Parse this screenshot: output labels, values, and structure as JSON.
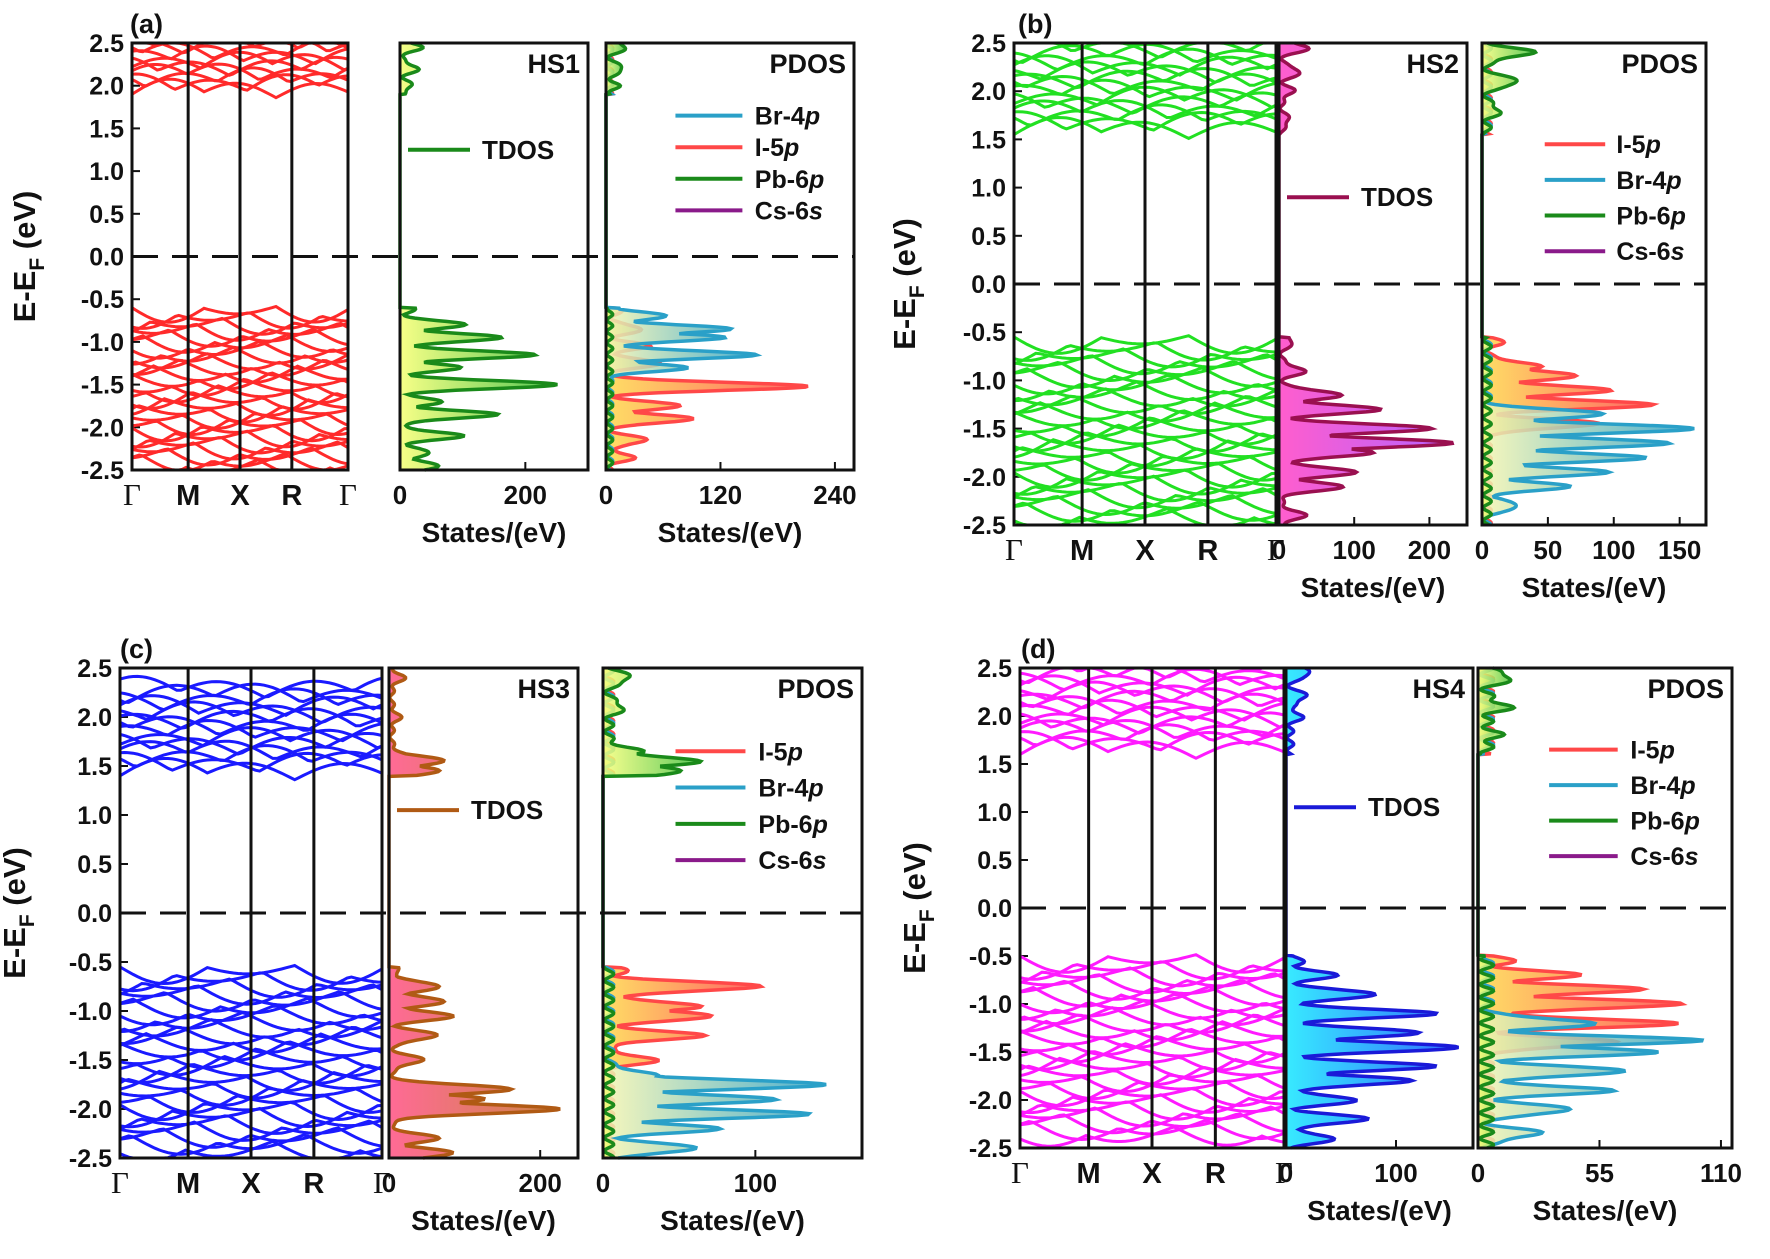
{
  "figure": {
    "y_axis_label_main": "E-E",
    "y_axis_label_sub": "F",
    "y_axis_label_unit": " (eV)",
    "y_range": [
      -2.5,
      2.5
    ],
    "y_ticks": [
      "2.5",
      "2.0",
      "1.5",
      "1.0",
      "0.5",
      "0.0",
      "-0.5",
      "-1.0",
      "-1.5",
      "-2.0",
      "-2.5"
    ],
    "k_labels": [
      "Γ",
      "M",
      "X",
      "R",
      "Γ"
    ],
    "dos_axis_label": "States/(eV)",
    "fermi_level": 0.0
  },
  "chart_data": [
    {
      "panel": "(a)",
      "type": "line",
      "band_color": "#ff2a2a",
      "gap": {
        "vbm": -0.6,
        "cbm": 1.9
      },
      "tdos": {
        "title": "HS1",
        "legend": "TDOS",
        "color": "#1a8a1a",
        "fill": [
          "#f6ff7a",
          "#3ec03e"
        ],
        "xticks": [
          "0",
          "200"
        ],
        "xtick_values": [
          0,
          200
        ],
        "xmax": 300,
        "peaks": [
          [
            -2.45,
            60
          ],
          [
            -2.3,
            45
          ],
          [
            -2.1,
            95
          ],
          [
            -1.85,
            150
          ],
          [
            -1.7,
            60
          ],
          [
            -1.5,
            250
          ],
          [
            -1.3,
            90
          ],
          [
            -1.15,
            210
          ],
          [
            -0.95,
            160
          ],
          [
            -0.8,
            100
          ],
          [
            -0.6,
            20
          ],
          [
            2.0,
            15
          ],
          [
            2.2,
            25
          ],
          [
            2.45,
            30
          ]
        ]
      },
      "pdos": {
        "title": "PDOS",
        "xticks": [
          "0",
          "120",
          "240"
        ],
        "xtick_values": [
          0,
          120,
          240
        ],
        "xmax": 260,
        "legend": [
          {
            "name": "Br-4",
            "ital": "p",
            "color": "#2aa0c8"
          },
          {
            "name": "I-5",
            "ital": "p",
            "color": "#ff4848"
          },
          {
            "name": "Pb-6",
            "ital": "p",
            "color": "#1a8a1a"
          },
          {
            "name": "Cs-6",
            "ital": "s",
            "color": "#8a1a8a"
          }
        ],
        "series": [
          {
            "name": "I-5p",
            "color": "#ff4848",
            "fill": [
              "#ffd84a",
              "#ff4848"
            ],
            "peaks": [
              [
                -2.35,
                25
              ],
              [
                -2.15,
                40
              ],
              [
                -1.9,
                90
              ],
              [
                -1.75,
                75
              ],
              [
                -1.52,
                210
              ],
              [
                -1.25,
                55
              ],
              [
                -1.05,
                40
              ],
              [
                -0.85,
                35
              ],
              [
                -0.65,
                10
              ]
            ]
          },
          {
            "name": "Br-4p",
            "color": "#2aa0c8",
            "fill": [
              "#f6f6b0",
              "#2aa0c8"
            ],
            "peaks": [
              [
                -1.3,
                80
              ],
              [
                -1.15,
                155
              ],
              [
                -0.95,
                120
              ],
              [
                -0.85,
                130
              ],
              [
                -0.7,
                60
              ],
              [
                -0.6,
                12
              ]
            ]
          },
          {
            "name": "Pb-6p",
            "color": "#1a8a1a",
            "fill": [
              "#f6ff7a",
              "#3ec03e"
            ],
            "peaks": [
              [
                2.0,
                8
              ],
              [
                2.2,
                15
              ],
              [
                2.45,
                18
              ]
            ]
          }
        ]
      }
    },
    {
      "panel": "(b)",
      "type": "line",
      "band_color": "#22e022",
      "gap": {
        "vbm": -0.55,
        "cbm": 1.55
      },
      "tdos": {
        "title": "HS2",
        "legend": "TDOS",
        "color": "#9a1050",
        "fill": [
          "#ff4cc8",
          "#b050ff"
        ],
        "xticks": [
          "0",
          "100",
          "200"
        ],
        "xtick_values": [
          0,
          100,
          200
        ],
        "xmax": 250,
        "peaks": [
          [
            -2.4,
            30
          ],
          [
            -2.1,
            80
          ],
          [
            -1.95,
            100
          ],
          [
            -1.75,
            120
          ],
          [
            -1.65,
            230
          ],
          [
            -1.5,
            200
          ],
          [
            -1.3,
            130
          ],
          [
            -1.15,
            80
          ],
          [
            -0.9,
            30
          ],
          [
            -0.6,
            15
          ],
          [
            1.7,
            10
          ],
          [
            2.0,
            15
          ],
          [
            2.2,
            25
          ],
          [
            2.45,
            35
          ]
        ]
      },
      "pdos": {
        "title": "PDOS",
        "xticks": [
          "0",
          "50",
          "100",
          "150"
        ],
        "xtick_values": [
          0,
          50,
          100,
          150
        ],
        "xmax": 170,
        "legend": [
          {
            "name": "I-5",
            "ital": "p",
            "color": "#ff4848"
          },
          {
            "name": "Br-4",
            "ital": "p",
            "color": "#2aa0c8"
          },
          {
            "name": "Pb-6",
            "ital": "p",
            "color": "#1a8a1a"
          },
          {
            "name": "Cs-6",
            "ital": "s",
            "color": "#8a1a8a"
          }
        ],
        "series": [
          {
            "name": "I-5p",
            "color": "#ff4848",
            "fill": [
              "#ffd84a",
              "#ff4848"
            ],
            "peaks": [
              [
                -1.45,
                85
              ],
              [
                -1.25,
                125
              ],
              [
                -1.1,
                95
              ],
              [
                -0.95,
                70
              ],
              [
                -0.85,
                40
              ],
              [
                -0.6,
                10
              ]
            ]
          },
          {
            "name": "Br-4p",
            "color": "#2aa0c8",
            "fill": [
              "#f6f6b0",
              "#2aa0c8"
            ],
            "peaks": [
              [
                -2.3,
                25
              ],
              [
                -2.1,
                60
              ],
              [
                -1.95,
                90
              ],
              [
                -1.8,
                120
              ],
              [
                -1.65,
                140
              ],
              [
                -1.5,
                160
              ],
              [
                -1.35,
                90
              ]
            ]
          },
          {
            "name": "Pb-6p",
            "color": "#1a8a1a",
            "fill": [
              "#f6ff7a",
              "#3ec03e"
            ],
            "peaks": [
              [
                1.8,
                10
              ],
              [
                2.1,
                25
              ],
              [
                2.4,
                35
              ]
            ]
          }
        ]
      }
    },
    {
      "panel": "(c)",
      "type": "line",
      "band_color": "#1a1aff",
      "gap": {
        "vbm": -0.55,
        "cbm": 1.4
      },
      "tdos": {
        "title": "HS3",
        "legend": "TDOS",
        "color": "#b05a14",
        "fill": [
          "#ff5a8a",
          "#c87830"
        ],
        "xticks": [
          "0",
          "200"
        ],
        "xtick_values": [
          0,
          200
        ],
        "xmax": 250,
        "peaks": [
          [
            -2.45,
            80
          ],
          [
            -2.3,
            60
          ],
          [
            -2.0,
            220
          ],
          [
            -1.9,
            120
          ],
          [
            -1.8,
            160
          ],
          [
            -1.5,
            40
          ],
          [
            -1.25,
            60
          ],
          [
            -1.05,
            80
          ],
          [
            -0.9,
            70
          ],
          [
            -0.75,
            65
          ],
          [
            -0.6,
            10
          ],
          [
            1.45,
            60
          ],
          [
            1.55,
            70
          ],
          [
            1.6,
            20
          ],
          [
            2.0,
            10
          ],
          [
            2.4,
            15
          ]
        ]
      },
      "pdos": {
        "title": "PDOS",
        "xticks": [
          "0",
          "100"
        ],
        "xtick_values": [
          0,
          100
        ],
        "xmax": 170,
        "legend": [
          {
            "name": "I-5",
            "ital": "p",
            "color": "#ff4848"
          },
          {
            "name": "Br-4",
            "ital": "p",
            "color": "#2aa0c8"
          },
          {
            "name": "Pb-6",
            "ital": "p",
            "color": "#1a8a1a"
          },
          {
            "name": "Cs-6",
            "ital": "s",
            "color": "#8a1a8a"
          }
        ],
        "series": [
          {
            "name": "I-5p",
            "color": "#ff4848",
            "fill": [
              "#ffd84a",
              "#ff4848"
            ],
            "peaks": [
              [
                -1.5,
                30
              ],
              [
                -1.25,
                60
              ],
              [
                -1.05,
                70
              ],
              [
                -0.95,
                60
              ],
              [
                -0.75,
                100
              ],
              [
                -0.6,
                10
              ]
            ]
          },
          {
            "name": "Br-4p",
            "color": "#2aa0c8",
            "fill": [
              "#f6f6b0",
              "#2aa0c8"
            ],
            "peaks": [
              [
                -2.4,
                60
              ],
              [
                -2.2,
                70
              ],
              [
                -2.05,
                130
              ],
              [
                -1.9,
                110
              ],
              [
                -1.75,
                145
              ],
              [
                -1.65,
                30
              ]
            ]
          },
          {
            "name": "Pb-6p",
            "color": "#1a8a1a",
            "fill": [
              "#f6ff7a",
              "#3ec03e"
            ],
            "peaks": [
              [
                1.45,
                50
              ],
              [
                1.55,
                60
              ],
              [
                1.65,
                20
              ],
              [
                2.1,
                10
              ],
              [
                2.4,
                15
              ]
            ]
          }
        ]
      }
    },
    {
      "panel": "(d)",
      "type": "line",
      "band_color": "#ff1aff",
      "gap": {
        "vbm": -0.5,
        "cbm": 1.6
      },
      "tdos": {
        "title": "HS4",
        "legend": "TDOS",
        "color": "#1a1ad8",
        "fill": [
          "#22e8ff",
          "#1a60ff"
        ],
        "xticks": [
          "0",
          "100"
        ],
        "xtick_values": [
          0,
          100
        ],
        "xmax": 170,
        "peaks": [
          [
            -2.4,
            40
          ],
          [
            -2.2,
            70
          ],
          [
            -2.0,
            60
          ],
          [
            -1.8,
            110
          ],
          [
            -1.65,
            130
          ],
          [
            -1.45,
            155
          ],
          [
            -1.3,
            120
          ],
          [
            -1.1,
            130
          ],
          [
            -0.9,
            80
          ],
          [
            -0.7,
            40
          ],
          [
            -0.55,
            10
          ],
          [
            2.0,
            10
          ],
          [
            2.2,
            15
          ],
          [
            2.45,
            20
          ]
        ]
      },
      "pdos": {
        "title": "PDOS",
        "xticks": [
          "0",
          "55",
          "110"
        ],
        "xtick_values": [
          0,
          55,
          110
        ],
        "xmax": 115,
        "legend": [
          {
            "name": "I-5",
            "ital": "p",
            "color": "#ff4848"
          },
          {
            "name": "Br-4",
            "ital": "p",
            "color": "#2aa0c8"
          },
          {
            "name": "Pb-6",
            "ital": "p",
            "color": "#1a8a1a"
          },
          {
            "name": "Cs-6",
            "ital": "s",
            "color": "#8a1a8a"
          }
        ],
        "series": [
          {
            "name": "I-5p",
            "color": "#ff4848",
            "fill": [
              "#ffd84a",
              "#ff4848"
            ],
            "peaks": [
              [
                -1.4,
                60
              ],
              [
                -1.2,
                85
              ],
              [
                -1.0,
                90
              ],
              [
                -0.85,
                70
              ],
              [
                -0.7,
                40
              ],
              [
                -0.55,
                10
              ]
            ]
          },
          {
            "name": "Br-4p",
            "color": "#2aa0c8",
            "fill": [
              "#f6f6b0",
              "#2aa0c8"
            ],
            "peaks": [
              [
                -2.35,
                25
              ],
              [
                -2.1,
                40
              ],
              [
                -1.9,
                55
              ],
              [
                -1.7,
                65
              ],
              [
                -1.5,
                75
              ],
              [
                -1.38,
                95
              ],
              [
                -1.2,
                50
              ]
            ]
          },
          {
            "name": "Pb-6p",
            "color": "#1a8a1a",
            "fill": [
              "#f6ff7a",
              "#3ec03e"
            ],
            "peaks": [
              [
                1.8,
                5
              ],
              [
                2.1,
                10
              ],
              [
                2.4,
                12
              ]
            ]
          }
        ]
      }
    }
  ]
}
